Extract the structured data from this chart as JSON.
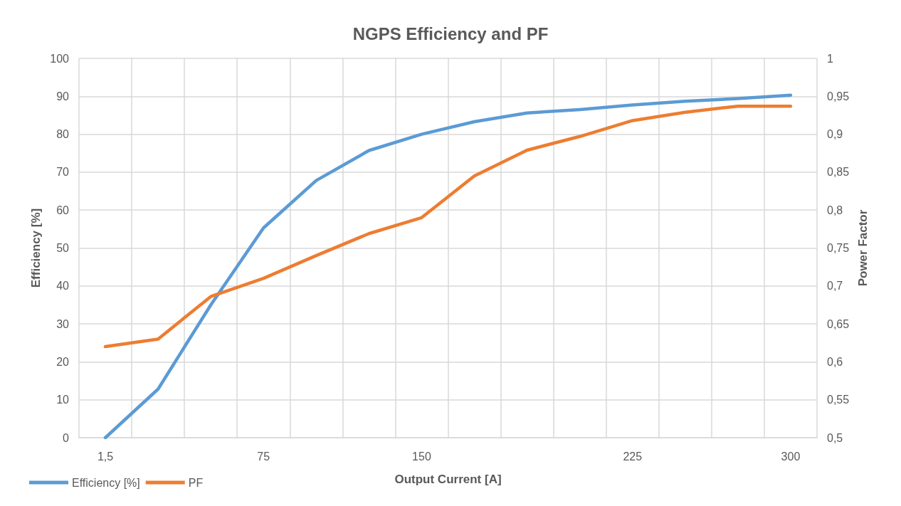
{
  "chart_data": {
    "type": "line",
    "title": "NGPS Efficiency and PF",
    "xlabel": "Output Current [A]",
    "ylabel": "Efficiency [%]",
    "y2label": "Power Factor",
    "categories": [
      "1,5",
      null,
      null,
      "75",
      null,
      null,
      "150",
      null,
      null,
      null,
      "225",
      null,
      null,
      "300"
    ],
    "series": [
      {
        "name": "Efficiency [%]",
        "color": "#5b9bd5",
        "values": [
          0,
          12.8,
          35,
          55.3,
          67.8,
          75.7,
          80,
          83.3,
          85.6,
          86.5,
          87.7,
          88.7,
          89.4,
          90.3
        ]
      },
      {
        "name": "PF",
        "color": "#ed7d31",
        "axis": "y2",
        "values": [
          0.62,
          0.63,
          0.686,
          0.71,
          0.74,
          0.769,
          0.79,
          0.845,
          0.879,
          0.897,
          0.918,
          0.929,
          0.937,
          0.937
        ]
      }
    ],
    "ylim": [
      0,
      100
    ],
    "yticks": [
      0,
      10,
      20,
      30,
      40,
      50,
      60,
      70,
      80,
      90,
      100
    ],
    "y2lim": [
      0.5,
      1
    ],
    "y2ticks": [
      {
        "value": 0.5,
        "label": "0,5"
      },
      {
        "value": 0.55,
        "label": "0,55"
      },
      {
        "value": 0.6,
        "label": "0,6"
      },
      {
        "value": 0.65,
        "label": "0,65"
      },
      {
        "value": 0.7,
        "label": "0,7"
      },
      {
        "value": 0.75,
        "label": "0,75"
      },
      {
        "value": 0.8,
        "label": "0,8"
      },
      {
        "value": 0.85,
        "label": "0,85"
      },
      {
        "value": 0.9,
        "label": "0,9"
      },
      {
        "value": 0.95,
        "label": "0,95"
      },
      {
        "value": 1,
        "label": "1"
      }
    ],
    "grid": true,
    "legend": "bottom left",
    "marker": "none",
    "line_style": "solid"
  }
}
